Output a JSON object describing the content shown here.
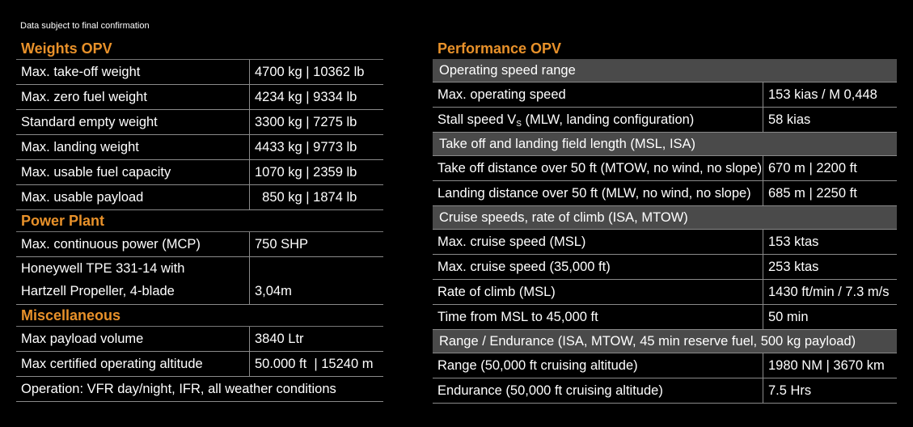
{
  "note": "Data subject to final confirmation",
  "weights": {
    "title": "Weights OPV",
    "rows": [
      {
        "label": "Max. take-off weight",
        "value": "4700 kg | 10362 lb"
      },
      {
        "label": "Max. zero fuel weight",
        "value": "4234 kg | 9334 lb"
      },
      {
        "label": "Standard empty weight",
        "value": "3300 kg | 7275 lb"
      },
      {
        "label": "Max. landing weight",
        "value": "4433 kg | 9773 lb"
      },
      {
        "label": "Max. usable fuel capacity",
        "value": "1070 kg | 2359 lb"
      },
      {
        "label": "Max. usable payload",
        "value": "  850 kg | 1874 lb"
      }
    ]
  },
  "power": {
    "title": "Power Plant",
    "mcp_label": "Max. continuous power (MCP)",
    "mcp_value": "750 SHP",
    "engine_line1": "Honeywell TPE 331-14 with",
    "engine_line2": "Hartzell Propeller, 4-blade",
    "engine_value": "3,04m"
  },
  "misc": {
    "title": "Miscellaneous",
    "rows": [
      {
        "label": "Max payload volume",
        "value": "3840 Ltr"
      },
      {
        "label": "Max certified operating altitude",
        "value": "50.000 ft  | 15240 m"
      }
    ],
    "operation": "Operation: VFR day/night, IFR, all weather conditions"
  },
  "performance": {
    "title": "Performance OPV",
    "speed_head": "Operating speed range",
    "max_op_label": "Max. operating speed",
    "max_op_value": "153 kias / M 0,448",
    "stall_label_pre": "Stall speed V",
    "stall_label_sub": "S",
    "stall_label_post": " (MLW, landing configuration)",
    "stall_value": "58 kias",
    "field_head": "Take off and landing field length (MSL, ISA)",
    "field_rows": [
      {
        "label": "Take off distance over 50 ft (MTOW, no wind, no slope)",
        "value": "670 m | 2200 ft"
      },
      {
        "label": "Landing distance over 50 ft (MLW, no wind, no slope)",
        "value": "685 m | 2250 ft"
      }
    ],
    "cruise_head": "Cruise speeds, rate of climb (ISA, MTOW)",
    "cruise_rows": [
      {
        "label": "Max. cruise speed (MSL)",
        "value": "153 ktas"
      },
      {
        "label": "Max. cruise speed (35,000 ft)",
        "value": "253 ktas"
      },
      {
        "label": "Rate of climb (MSL)",
        "value": "1430 ft/min / 7.3 m/s"
      },
      {
        "label": "Time from MSL to 45,000 ft",
        "value": "50 min"
      }
    ],
    "range_head": "Range / Endurance (ISA, MTOW, 45 min reserve fuel, 500 kg payload)",
    "range_rows": [
      {
        "label": "Range (50,000 ft cruising altitude)",
        "value": "1980 NM | 3670 km"
      },
      {
        "label": "Endurance (50,000 ft cruising altitude)",
        "value": "7.5 Hrs"
      }
    ]
  }
}
